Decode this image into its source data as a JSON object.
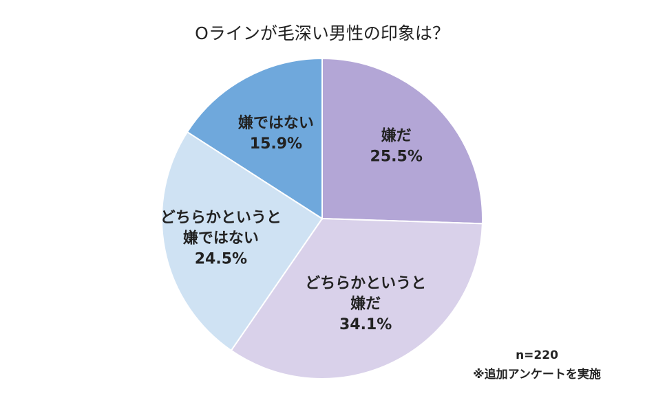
{
  "chart_data": {
    "type": "pie",
    "title": "Oラインが毛深い男性の印象は？",
    "start_angle": "12 o'clock",
    "direction": "clockwise",
    "legend": "none",
    "slices": [
      {
        "label_lines": [
          "嫌だ"
        ],
        "value": 25.5,
        "value_label": "25.5%",
        "color": "#b3a6d6"
      },
      {
        "label_lines": [
          "どちらかというと",
          "嫌だ"
        ],
        "value": 34.1,
        "value_label": "34.1%",
        "color": "#d9d1ea"
      },
      {
        "label_lines": [
          "どちらかというと",
          "嫌ではない"
        ],
        "value": 24.5,
        "value_label": "24.5%",
        "color": "#cfe2f3"
      },
      {
        "label_lines": [
          "嫌ではない"
        ],
        "value": 15.9,
        "value_label": "15.9%",
        "color": "#6fa8dc"
      }
    ],
    "sample_size": "n=220",
    "footnote": "※追加アンケートを実施"
  }
}
